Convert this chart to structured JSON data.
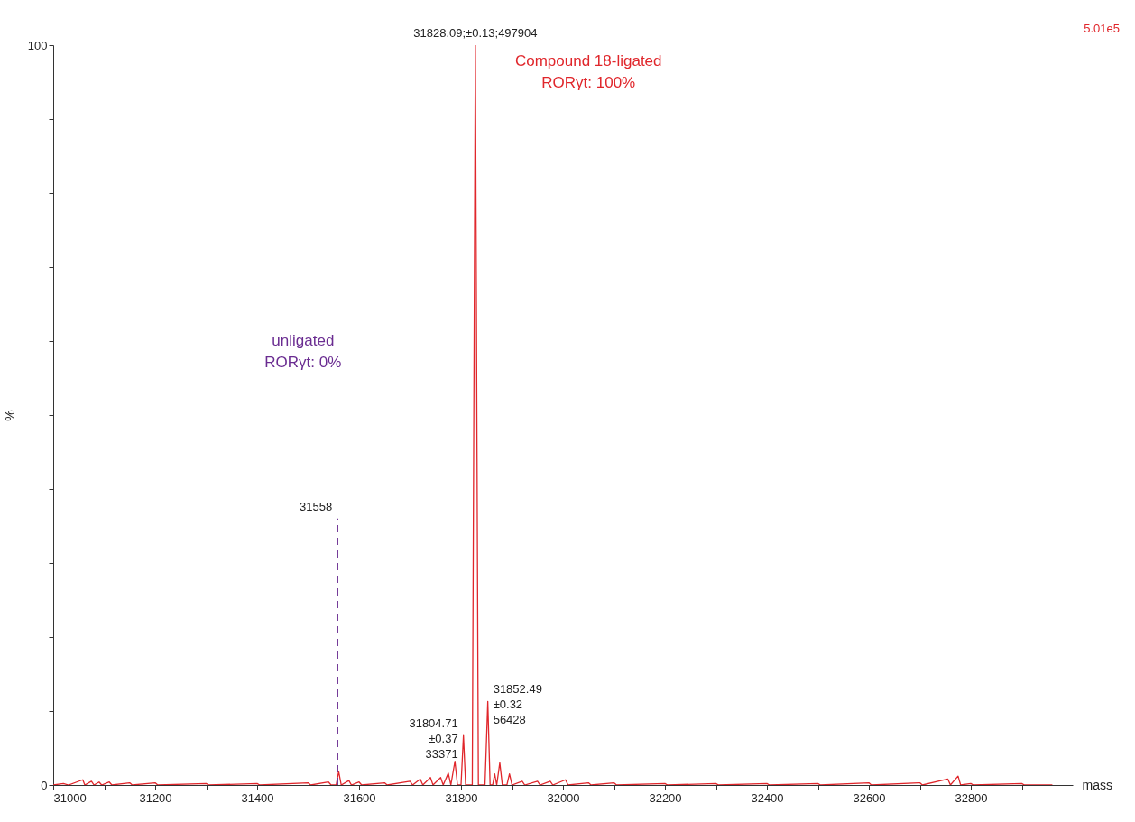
{
  "chart_data": {
    "type": "line",
    "xlabel": "mass",
    "ylabel": "%",
    "xlim": [
      31000,
      33000
    ],
    "ylim": [
      0,
      100
    ],
    "xticks": [
      31000,
      {
        "value": 31100,
        "label": null
      },
      31200,
      {
        "value": 31300,
        "label": null
      },
      31400,
      {
        "value": 31500,
        "label": null
      },
      31600,
      {
        "value": 31700,
        "label": null
      },
      31800,
      {
        "value": 31900,
        "label": null
      },
      32000,
      {
        "value": 32100,
        "label": null
      },
      32200,
      {
        "value": 32300,
        "label": null
      },
      32400,
      {
        "value": 32500,
        "label": null
      },
      32600,
      {
        "value": 32700,
        "label": null
      },
      32800,
      {
        "value": 32900,
        "label": null
      }
    ],
    "yticks": [
      0,
      {
        "value": 10,
        "label": null
      },
      {
        "value": 20,
        "label": null
      },
      {
        "value": 30,
        "label": null
      },
      {
        "value": 40,
        "label": null
      },
      {
        "value": 50,
        "label": null
      },
      {
        "value": 60,
        "label": null
      },
      {
        "value": 70,
        "label": null
      },
      {
        "value": 80,
        "label": null
      },
      {
        "value": 90,
        "label": null
      },
      100
    ],
    "grid": false,
    "marker": "none",
    "series": [
      {
        "color": "#e0262b",
        "line_style": "solid",
        "x": [
          31000,
          31020,
          31030,
          31058,
          31062,
          31075,
          31080,
          31090,
          31095,
          31110,
          31115,
          31150,
          31155,
          31200,
          31205,
          31300,
          31305,
          31400,
          31405,
          31500,
          31505,
          31540,
          31545,
          31555,
          31560,
          31565,
          31580,
          31585,
          31600,
          31605,
          31650,
          31655,
          31700,
          31705,
          31720,
          31725,
          31740,
          31745,
          31760,
          31765,
          31775,
          31780,
          31788,
          31793,
          31800,
          31804.71,
          31809,
          31822,
          31828.09,
          31834,
          31847,
          31852.49,
          31857,
          31862,
          31866,
          31870,
          31876,
          31881,
          31890,
          31895,
          31900,
          31920,
          31925,
          31950,
          31955,
          31975,
          31980,
          32005,
          32010,
          32050,
          32055,
          32100,
          32105,
          32200,
          32205,
          32300,
          32305,
          32400,
          32405,
          32500,
          32505,
          32600,
          32605,
          32700,
          32705,
          32755,
          32760,
          32775,
          32780,
          32800,
          32805,
          32900,
          32905,
          32960
        ],
        "values": [
          0,
          0.2,
          0,
          0.7,
          0,
          0.5,
          0,
          0.4,
          0,
          0.4,
          0,
          0.3,
          0,
          0.3,
          0,
          0.2,
          0,
          0.2,
          0,
          0.3,
          0,
          0.4,
          0,
          0,
          1.8,
          0,
          0.6,
          0,
          0.4,
          0,
          0.3,
          0,
          0.5,
          0,
          0.8,
          0,
          1.0,
          0,
          1.0,
          0,
          1.6,
          0,
          3.2,
          0,
          0,
          6.7,
          0,
          0,
          100,
          0,
          0,
          11.3,
          0,
          0,
          1.5,
          0,
          3.0,
          0,
          0,
          1.5,
          0,
          0.5,
          0,
          0.5,
          0,
          0.5,
          0,
          0.7,
          0,
          0.3,
          0,
          0.3,
          0,
          0.2,
          0,
          0.2,
          0,
          0.2,
          0,
          0.2,
          0,
          0.3,
          0,
          0.3,
          0,
          0.8,
          0,
          1.2,
          0,
          0.2,
          0,
          0.2,
          0,
          0
        ]
      },
      {
        "color": "#6a2c91",
        "line_style": "dashed",
        "x": [
          31558,
          31558
        ],
        "values": [
          0,
          36
        ]
      }
    ],
    "annotations": [
      {
        "text": "31828.09;±0.13;497904",
        "x": 31828.09,
        "y": 100
      },
      {
        "text": "31804.71\n±0.37\n33371",
        "x": 31804.71,
        "y": 6.7
      },
      {
        "text": "31852.49\n±0.32\n56428",
        "x": 31852.49,
        "y": 11.3
      },
      {
        "text": "31558",
        "x": 31558,
        "y": 36
      },
      "Compound 18-ligated\nRORγt: 100%",
      "unligated\nRORγt: 0%",
      "5.01e5"
    ]
  }
}
